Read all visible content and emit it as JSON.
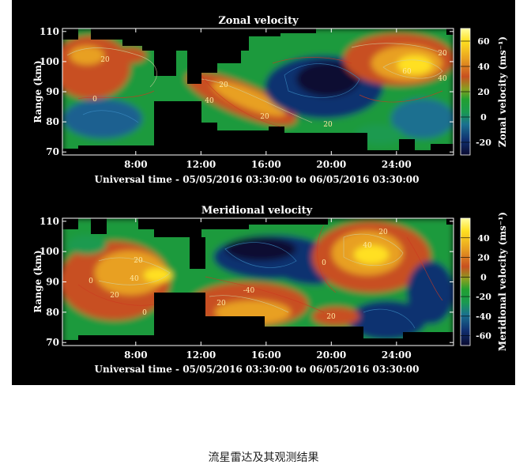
{
  "figure_caption": "流星雷达及其观测结果",
  "colors": {
    "background": "#000000",
    "foreground": "#ffffff",
    "colormap": [
      "#0a0a30",
      "#103070",
      "#1a7090",
      "#1a9a50",
      "#22a030",
      "#88a020",
      "#c85020",
      "#e8a020",
      "#ffe020",
      "#ffffa0"
    ]
  },
  "chart_data": [
    {
      "type": "heatmap",
      "title": "Zonal velocity",
      "xlabel": "Universal time - 05/05/2016 03:30:00 to 06/05/2016 03:30:00",
      "ylabel": "Range (km)",
      "x_ticks": [
        "8:00",
        "12:00",
        "16:00",
        "20:00",
        "24:00"
      ],
      "y_ticks": [
        "70",
        "80",
        "90",
        "100",
        "110"
      ],
      "xlim": [
        3.5,
        27.5
      ],
      "ylim": [
        69,
        111
      ],
      "colorbar": {
        "label": "Zonal velocity (ms⁻¹)",
        "ticks": [
          "60",
          "40",
          "20",
          "0",
          "-20"
        ],
        "range": [
          -30,
          70
        ]
      },
      "contour_labels": [
        "20",
        "0",
        "20",
        "40",
        "20",
        "20",
        "60",
        "40",
        "20"
      ]
    },
    {
      "type": "heatmap",
      "title": "Meridional velocity",
      "xlabel": "Universal time - 05/05/2016 03:30:00 to 06/05/2016 03:30:00",
      "ylabel": "Range (km)",
      "x_ticks": [
        "8:00",
        "12:00",
        "16:00",
        "20:00",
        "24:00"
      ],
      "y_ticks": [
        "70",
        "80",
        "90",
        "100",
        "110"
      ],
      "xlim": [
        3.5,
        27.5
      ],
      "ylim": [
        69,
        111
      ],
      "colorbar": {
        "label": "Meridional velocity (ms⁻¹)",
        "ticks": [
          "40",
          "20",
          "0",
          "-20",
          "-40",
          "-60"
        ],
        "range": [
          -70,
          60
        ]
      },
      "contour_labels": [
        "0",
        "20",
        "20",
        "40",
        "0",
        "20",
        "40",
        "0",
        "20",
        "-40",
        "20"
      ]
    }
  ]
}
